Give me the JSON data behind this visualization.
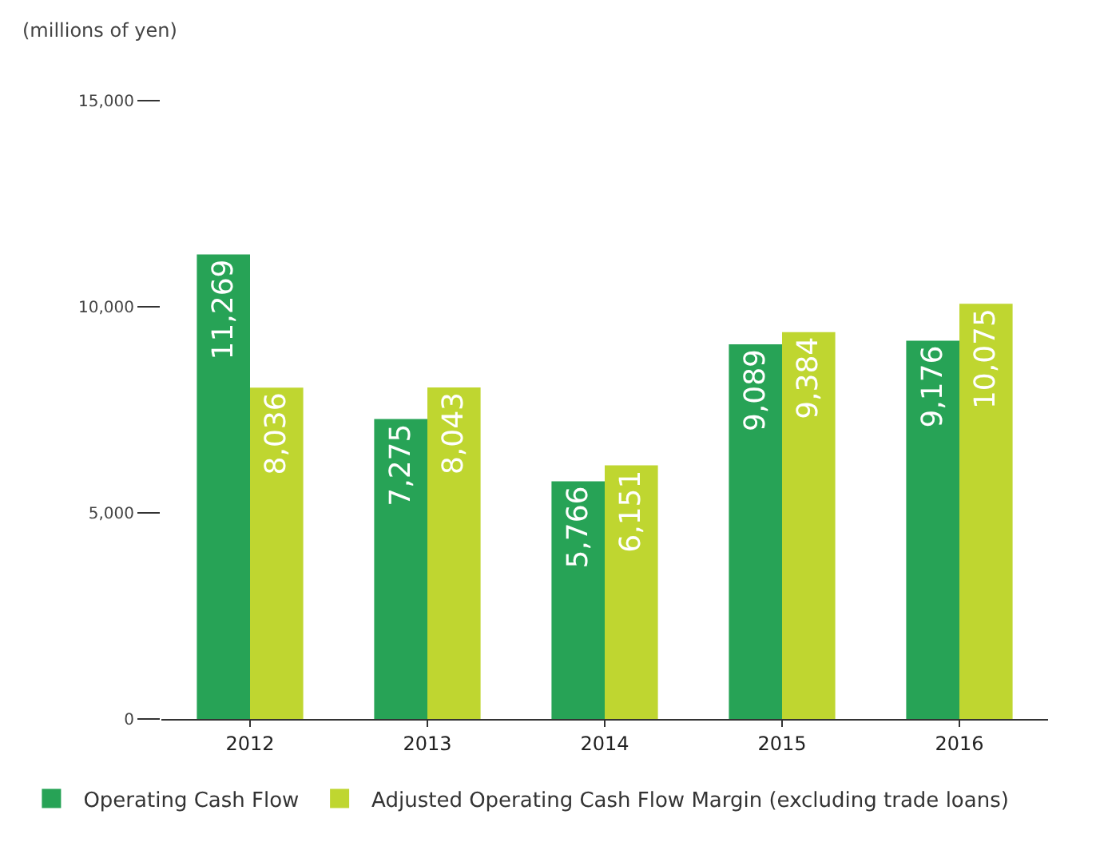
{
  "chart_data": {
    "type": "bar",
    "ylabel": "(millions of yen)",
    "categories": [
      "2012",
      "2013",
      "2014",
      "2015",
      "2016"
    ],
    "series": [
      {
        "name": "Operating Cash Flow",
        "color": "#27a356",
        "values": [
          11269,
          7275,
          5766,
          9089,
          9176
        ],
        "value_labels": [
          "11,269",
          "7,275",
          "5,766",
          "9,089",
          "9,176"
        ]
      },
      {
        "name": "Adjusted Operating Cash Flow Margin (excluding trade loans)",
        "color": "#bfd630",
        "values": [
          8036,
          8043,
          6151,
          9384,
          10075
        ],
        "value_labels": [
          "8,036",
          "8,043",
          "6,151",
          "9,384",
          "10,075"
        ]
      }
    ],
    "ylim": [
      0,
      15000
    ],
    "yticks": [
      {
        "value": 0,
        "label": "0"
      },
      {
        "value": 5000,
        "label": "5,000"
      },
      {
        "value": 10000,
        "label": "10,000"
      },
      {
        "value": 15000,
        "label": "15,000"
      }
    ],
    "legend": "bottom left"
  }
}
